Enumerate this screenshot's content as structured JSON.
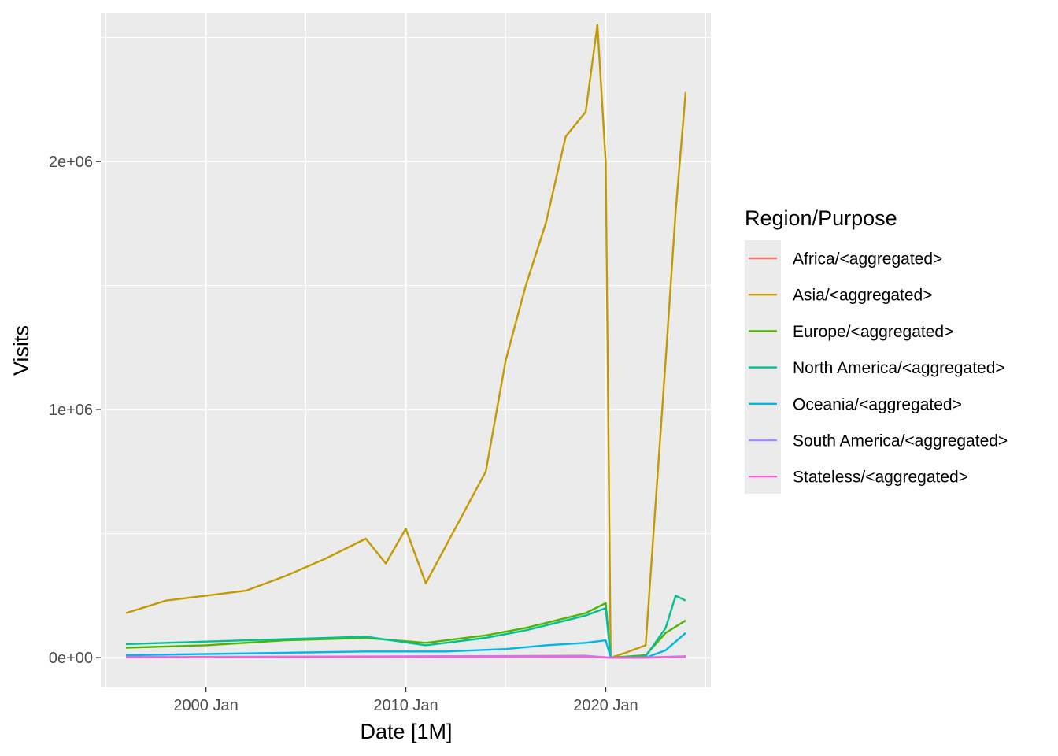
{
  "chart_data": {
    "type": "line",
    "title": "",
    "xlabel": "Date [1M]",
    "ylabel": "Visits",
    "x_start": "1996 Jan",
    "x_end": "2024 Jan",
    "x_ticks": [
      "2000 Jan",
      "2010 Jan",
      "2020 Jan"
    ],
    "y_ticks": [
      "0e+00",
      "1e+06",
      "2e+06"
    ],
    "ylim": [
      -120000,
      2600000
    ],
    "grid": true,
    "legend": {
      "title": "Region/Purpose",
      "position": "right"
    },
    "series": [
      {
        "name": "Africa/<aggregated>",
        "color": "#F8766D",
        "x": [
          "1996 Jan",
          "2008 Jan",
          "2019 Jan",
          "2020 Apr",
          "2022 Jan",
          "2024 Jan"
        ],
        "values": [
          3000,
          5000,
          8000,
          0,
          500,
          6000
        ]
      },
      {
        "name": "Asia/<aggregated>",
        "color": "#C49A00",
        "x": [
          "1996 Jan",
          "1998 Jan",
          "2000 Jan",
          "2002 Jan",
          "2004 Jan",
          "2006 Jan",
          "2008 Jan",
          "2009 Jan",
          "2010 Jan",
          "2011 Jan",
          "2012 Jan",
          "2013 Jan",
          "2014 Jan",
          "2015 Jan",
          "2016 Jan",
          "2017 Jan",
          "2018 Jan",
          "2019 Jan",
          "2019 Aug",
          "2020 Jan",
          "2020 Apr",
          "2021 Jan",
          "2022 Jan",
          "2023 Jan",
          "2023 Jul",
          "2024 Jan"
        ],
        "values": [
          180000,
          230000,
          250000,
          270000,
          330000,
          400000,
          480000,
          380000,
          520000,
          300000,
          450000,
          600000,
          750000,
          1200000,
          1500000,
          1750000,
          2100000,
          2200000,
          2550000,
          2000000,
          0,
          20000,
          50000,
          1200000,
          1800000,
          2280000
        ]
      },
      {
        "name": "Europe/<aggregated>",
        "color": "#53B400",
        "x": [
          "1996 Jan",
          "2000 Jan",
          "2004 Jan",
          "2008 Jan",
          "2011 Jan",
          "2014 Jan",
          "2016 Jan",
          "2018 Jan",
          "2019 Jan",
          "2020 Jan",
          "2020 Apr",
          "2022 Jan",
          "2023 Jan",
          "2024 Jan"
        ],
        "values": [
          40000,
          50000,
          70000,
          80000,
          60000,
          90000,
          120000,
          160000,
          180000,
          220000,
          0,
          10000,
          100000,
          150000
        ]
      },
      {
        "name": "North America/<aggregated>",
        "color": "#00C094",
        "x": [
          "1996 Jan",
          "2000 Jan",
          "2004 Jan",
          "2008 Jan",
          "2011 Jan",
          "2014 Jan",
          "2016 Jan",
          "2018 Jan",
          "2019 Jan",
          "2020 Jan",
          "2020 Apr",
          "2022 Jan",
          "2023 Jan",
          "2023 Jul",
          "2024 Jan"
        ],
        "values": [
          55000,
          65000,
          75000,
          85000,
          50000,
          80000,
          110000,
          150000,
          170000,
          200000,
          0,
          5000,
          120000,
          250000,
          230000
        ]
      },
      {
        "name": "Oceania/<aggregated>",
        "color": "#00B6EB",
        "x": [
          "1996 Jan",
          "2000 Jan",
          "2004 Jan",
          "2008 Jan",
          "2012 Jan",
          "2015 Jan",
          "2017 Jan",
          "2019 Jan",
          "2020 Jan",
          "2020 Apr",
          "2022 Jan",
          "2023 Jan",
          "2024 Jan"
        ],
        "values": [
          10000,
          15000,
          20000,
          25000,
          25000,
          35000,
          50000,
          60000,
          70000,
          0,
          0,
          30000,
          100000
        ]
      },
      {
        "name": "South America/<aggregated>",
        "color": "#A58AFF",
        "x": [
          "1996 Jan",
          "2008 Jan",
          "2019 Jan",
          "2020 Apr",
          "2022 Jan",
          "2024 Jan"
        ],
        "values": [
          2000,
          4000,
          7000,
          0,
          500,
          5000
        ]
      },
      {
        "name": "Stateless/<aggregated>",
        "color": "#FB61D7",
        "x": [
          "1996 Jan",
          "2008 Jan",
          "2019 Jan",
          "2020 Apr",
          "2022 Jan",
          "2024 Jan"
        ],
        "values": [
          1000,
          2000,
          3000,
          0,
          300,
          2000
        ]
      }
    ]
  }
}
